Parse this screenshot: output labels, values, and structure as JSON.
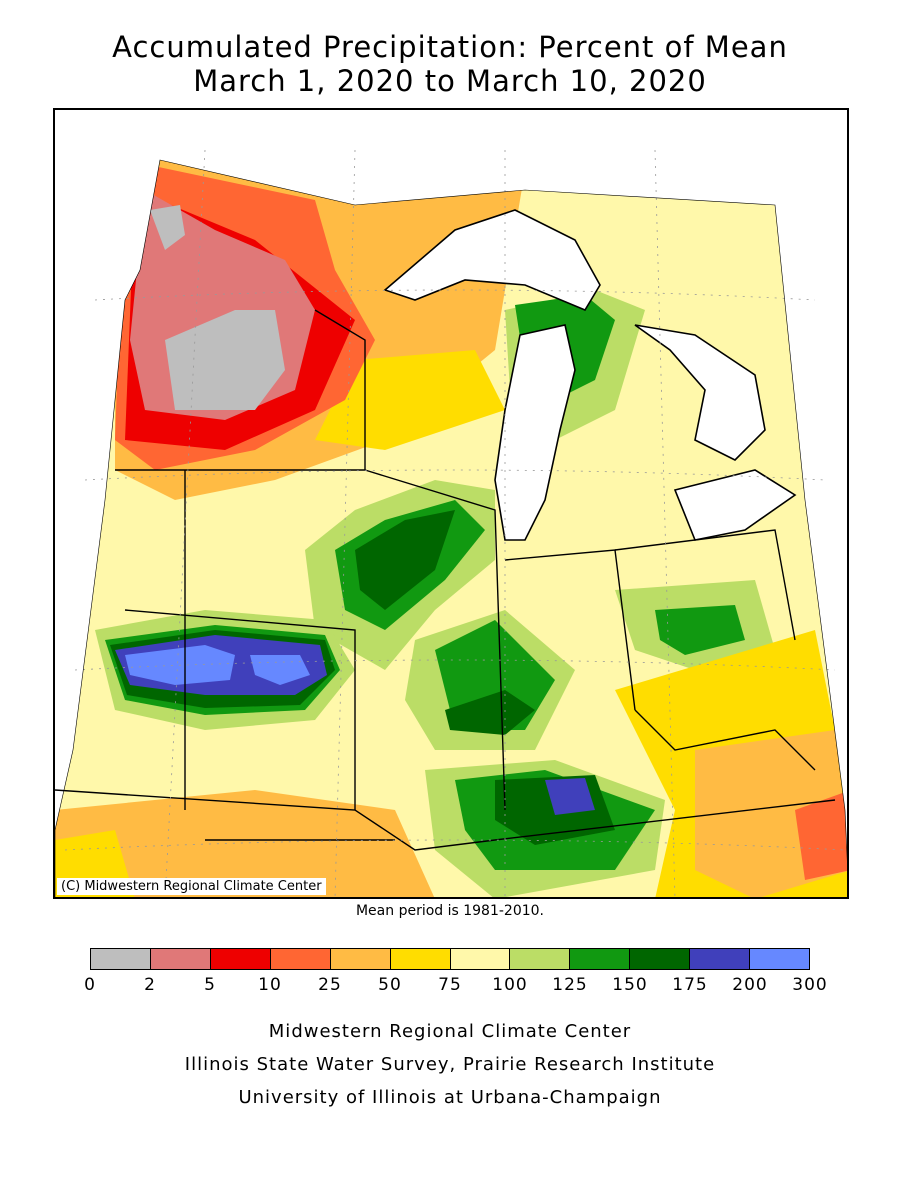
{
  "title_line1": "Accumulated Precipitation: Percent of Mean",
  "title_line2": "March 1, 2020 to March 10, 2020",
  "copyright": "(C) Midwestern Regional Climate Center",
  "mean_period": "Mean period is 1981-2010.",
  "legend": {
    "bins": [
      {
        "from": "0",
        "to": "2",
        "color": "#BEBEBE"
      },
      {
        "from": "2",
        "to": "5",
        "color": "#E07878"
      },
      {
        "from": "5",
        "to": "10",
        "color": "#EE0000"
      },
      {
        "from": "10",
        "to": "25",
        "color": "#FF6633"
      },
      {
        "from": "25",
        "to": "50",
        "color": "#FFBB44"
      },
      {
        "from": "50",
        "to": "75",
        "color": "#FFDD00"
      },
      {
        "from": "75",
        "to": "100",
        "color": "#FFF8AA"
      },
      {
        "from": "100",
        "to": "125",
        "color": "#BBDD66"
      },
      {
        "from": "125",
        "to": "150",
        "color": "#119911"
      },
      {
        "from": "150",
        "to": "175",
        "color": "#006600"
      },
      {
        "from": "175",
        "to": "200",
        "color": "#4040BB"
      },
      {
        "from": "200",
        "to": "300",
        "color": "#6688FF"
      }
    ],
    "tick_labels": [
      "0",
      "2",
      "5",
      "10",
      "25",
      "50",
      "75",
      "100",
      "125",
      "150",
      "175",
      "200",
      "300"
    ]
  },
  "footer": {
    "line1": "Midwestern Regional Climate Center",
    "line2": "Illinois State Water Survey, Prairie Research Institute",
    "line3": "University of Illinois at Urbana-Champaign"
  }
}
